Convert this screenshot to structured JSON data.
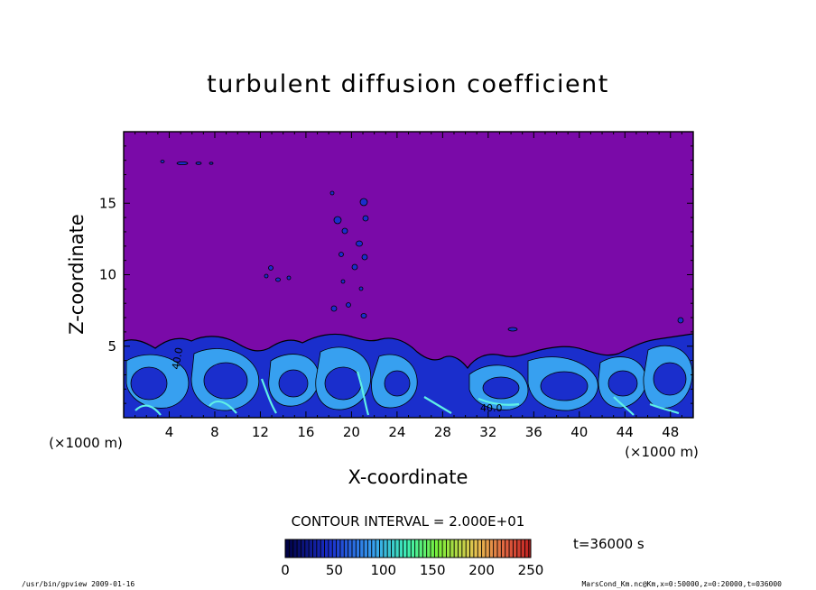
{
  "chart_data": {
    "type": "heatmap",
    "title": "turbulent diffusion coefficient",
    "xlabel": "X-coordinate",
    "ylabel": "Z-coordinate",
    "x_unit_left": "(×1000 m)",
    "x_unit_right": "(×1000 m)",
    "xlim": [
      0,
      50
    ],
    "ylim": [
      0,
      20
    ],
    "x_ticks": [
      4,
      8,
      12,
      16,
      20,
      24,
      28,
      32,
      36,
      40,
      44,
      48
    ],
    "y_ticks": [
      5,
      10,
      15
    ],
    "contour_interval_text": "CONTOUR INTERVAL = 2.000E+01",
    "contour_label": "40.0",
    "colorbar": {
      "min": 0,
      "max": 250,
      "ticks": [
        0,
        50,
        100,
        150,
        200,
        250
      ]
    },
    "time_label": "t=36000 s",
    "colors": {
      "background_field": "#7a0aa8",
      "low": "#1a2ecc",
      "mid": "#37a0f0",
      "high": "#5ff0e6"
    }
  },
  "footer": {
    "left": "/usr/bin/gpview   2009-01-16",
    "right": "MarsCond_Km.nc@Km,x=0:50000,z=0:20000,t=036000"
  }
}
